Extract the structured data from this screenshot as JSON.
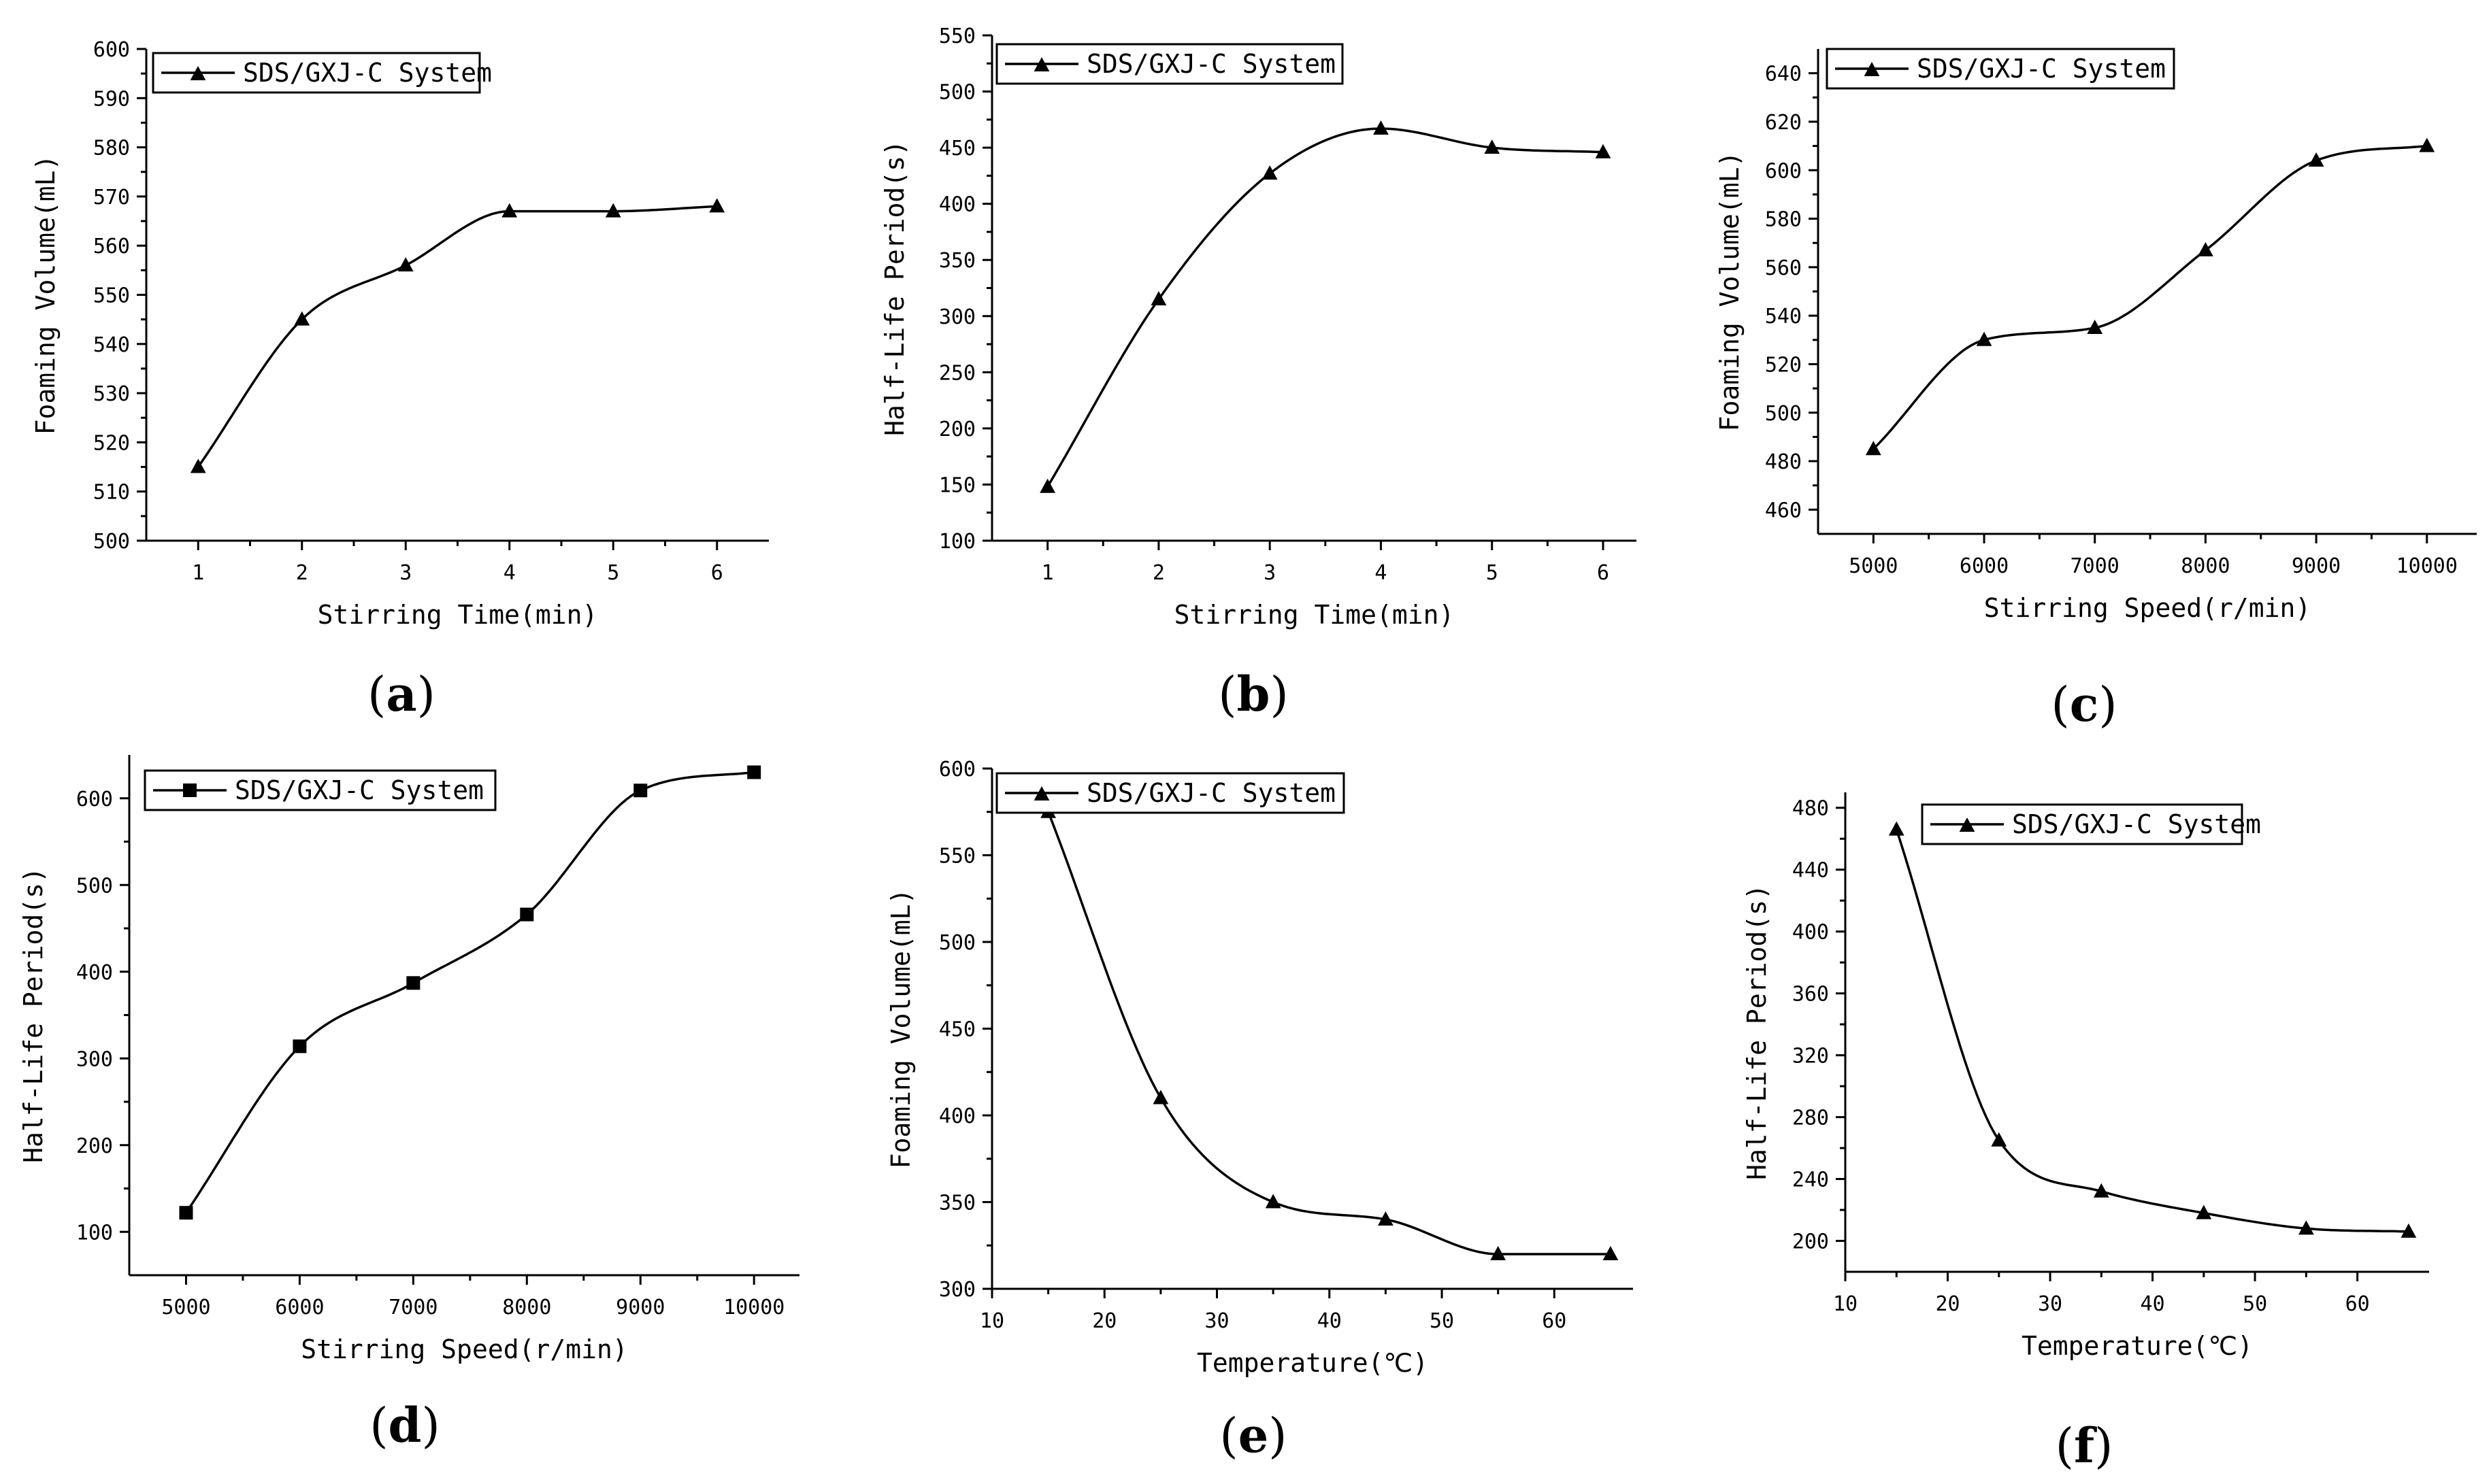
{
  "chart_data": [
    {
      "id": "a",
      "panel_label": "a",
      "type": "line",
      "marker": "triangle",
      "legend": "SDS/GXJ-C System",
      "xlabel": "Stirring Time(min)",
      "ylabel": "Foaming Volume(mL)",
      "xticks": [
        1,
        2,
        3,
        4,
        5,
        6
      ],
      "yticks": [
        500,
        510,
        520,
        530,
        540,
        550,
        560,
        570,
        580,
        590,
        600
      ],
      "xlim": [
        0.5,
        6.5
      ],
      "ylim": [
        500,
        600
      ],
      "x": [
        1,
        2,
        3,
        4,
        5,
        6
      ],
      "y": [
        515,
        545,
        556,
        567,
        567,
        568
      ]
    },
    {
      "id": "b",
      "panel_label": "b",
      "type": "line",
      "marker": "triangle",
      "legend": "SDS/GXJ-C System",
      "xlabel": "Stirring Time(min)",
      "ylabel": "Half-Life Period(s)",
      "xticks": [
        1,
        2,
        3,
        4,
        5,
        6
      ],
      "yticks": [
        100,
        150,
        200,
        250,
        300,
        350,
        400,
        450,
        500,
        550
      ],
      "xlim": [
        0.5,
        6.3
      ],
      "ylim": [
        100,
        550
      ],
      "x": [
        1,
        2,
        3,
        4,
        5,
        6
      ],
      "y": [
        148,
        315,
        427,
        467,
        450,
        446
      ]
    },
    {
      "id": "c",
      "panel_label": "c",
      "type": "line",
      "marker": "triangle",
      "legend": "SDS/GXJ-C System",
      "xlabel": "Stirring Speed(r/min)",
      "ylabel": "Foaming Volume(mL)",
      "xticks": [
        5000,
        6000,
        7000,
        8000,
        9000,
        10000
      ],
      "yticks": [
        460,
        480,
        500,
        520,
        540,
        560,
        580,
        600,
        620,
        640
      ],
      "xlim": [
        4500,
        10450
      ],
      "ylim": [
        450,
        650
      ],
      "x": [
        5000,
        6000,
        7000,
        8000,
        9000,
        10000
      ],
      "y": [
        485,
        530,
        535,
        567,
        604,
        610
      ]
    },
    {
      "id": "d",
      "panel_label": "d",
      "type": "line",
      "marker": "square",
      "legend": "SDS/GXJ-C System",
      "xlabel": "Stirring Speed(r/min)",
      "ylabel": "Half-Life Period(s)",
      "xticks": [
        5000,
        6000,
        7000,
        8000,
        9000,
        10000
      ],
      "yticks": [
        100,
        200,
        300,
        400,
        500,
        600
      ],
      "xlim": [
        4500,
        10400
      ],
      "ylim": [
        50,
        650
      ],
      "x": [
        5000,
        6000,
        7000,
        8000,
        9000,
        10000
      ],
      "y": [
        122,
        314,
        387,
        466,
        609,
        630
      ]
    },
    {
      "id": "e",
      "panel_label": "e",
      "type": "line",
      "marker": "triangle",
      "legend": "SDS/GXJ-C System",
      "xlabel": "Temperature(℃)",
      "ylabel": "Foaming Volume(mL)",
      "xticks": [
        10,
        20,
        30,
        40,
        50,
        60
      ],
      "yticks": [
        300,
        350,
        400,
        450,
        500,
        550,
        600
      ],
      "xlim": [
        10,
        67
      ],
      "ylim": [
        300,
        600
      ],
      "x": [
        15,
        25,
        35,
        45,
        55,
        65
      ],
      "y": [
        575,
        410,
        350,
        340,
        320,
        320
      ]
    },
    {
      "id": "f",
      "panel_label": "f",
      "type": "line",
      "marker": "triangle",
      "legend": "SDS/GXJ-C System",
      "xlabel": "Temperature(℃)",
      "ylabel": "Half-Life Period(s)",
      "xticks": [
        10,
        20,
        30,
        40,
        50,
        60
      ],
      "yticks": [
        200,
        240,
        280,
        320,
        360,
        400,
        440,
        480
      ],
      "xlim": [
        10,
        67
      ],
      "ylim": [
        180,
        490
      ],
      "x": [
        15,
        25,
        35,
        45,
        55,
        65
      ],
      "y": [
        466,
        265,
        232,
        218,
        208,
        206
      ]
    }
  ]
}
